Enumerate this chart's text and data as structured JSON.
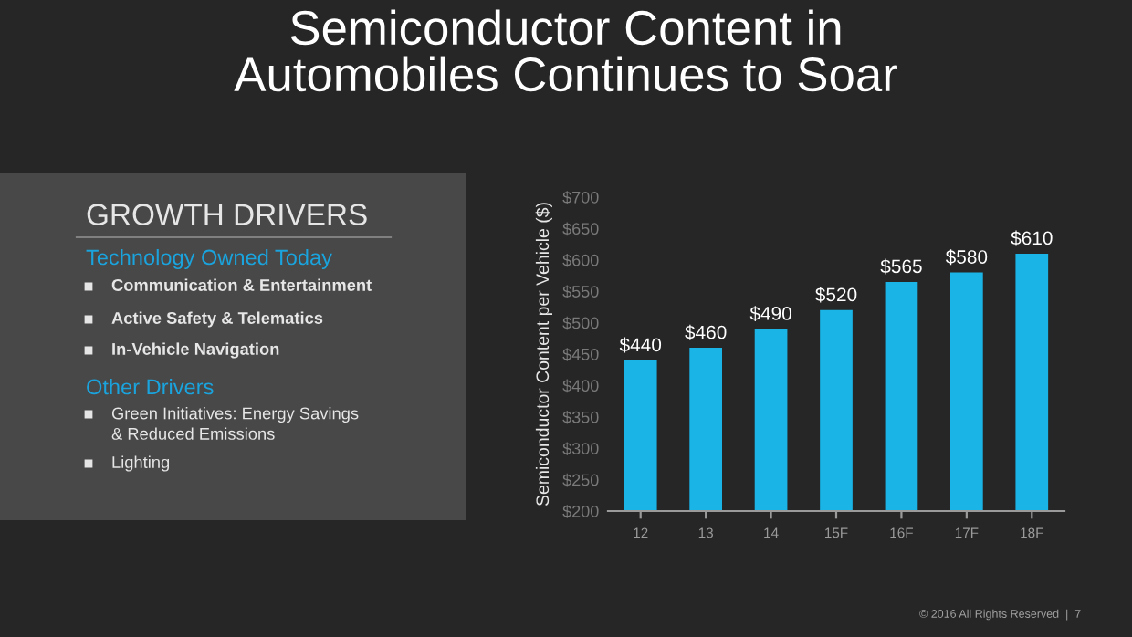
{
  "chart_data": [
    {
      "type": "other",
      "title": "GROWTH DRIVERS",
      "annotations": [
        "Technology Owned Today",
        "Communication & Entertainment",
        "Active Safety & Telematics",
        "In-Vehicle Navigation",
        "Other Drivers",
        "Green Initiatives: Energy Savings\n& Reduced Emissions",
        "Lighting"
      ]
    },
    {
      "type": "bar",
      "title": "Semiconductor Content in\nAutomobiles Continues to Soar",
      "ylabel": "Semiconductor Content per Vehicle ($)",
      "categories": [
        "12",
        "13",
        "14",
        "15F",
        "16F",
        "17F",
        "18F"
      ],
      "values": [
        440,
        460,
        490,
        520,
        565,
        580,
        610
      ],
      "value_labels": [
        "$440",
        "$460",
        "$490",
        "$520",
        "$565",
        "$580",
        "$610"
      ],
      "color": "#1ab4e6",
      "ylim": [
        200,
        700
      ],
      "yticks": [
        {
          "value": 200,
          "label": "$200"
        },
        {
          "value": 250,
          "label": "$250"
        },
        {
          "value": 300,
          "label": "$300"
        },
        {
          "value": 350,
          "label": "$350"
        },
        {
          "value": 400,
          "label": "$400"
        },
        {
          "value": 450,
          "label": "$450"
        },
        {
          "value": 500,
          "label": "$500"
        },
        {
          "value": 550,
          "label": "$550"
        },
        {
          "value": 600,
          "label": "$600"
        },
        {
          "value": 650,
          "label": "$650"
        },
        {
          "value": 700,
          "label": "$700"
        }
      ],
      "grid": false,
      "legend": false,
      "annotations": [
        "© 2016 All Rights Reserved  |  7"
      ]
    }
  ]
}
